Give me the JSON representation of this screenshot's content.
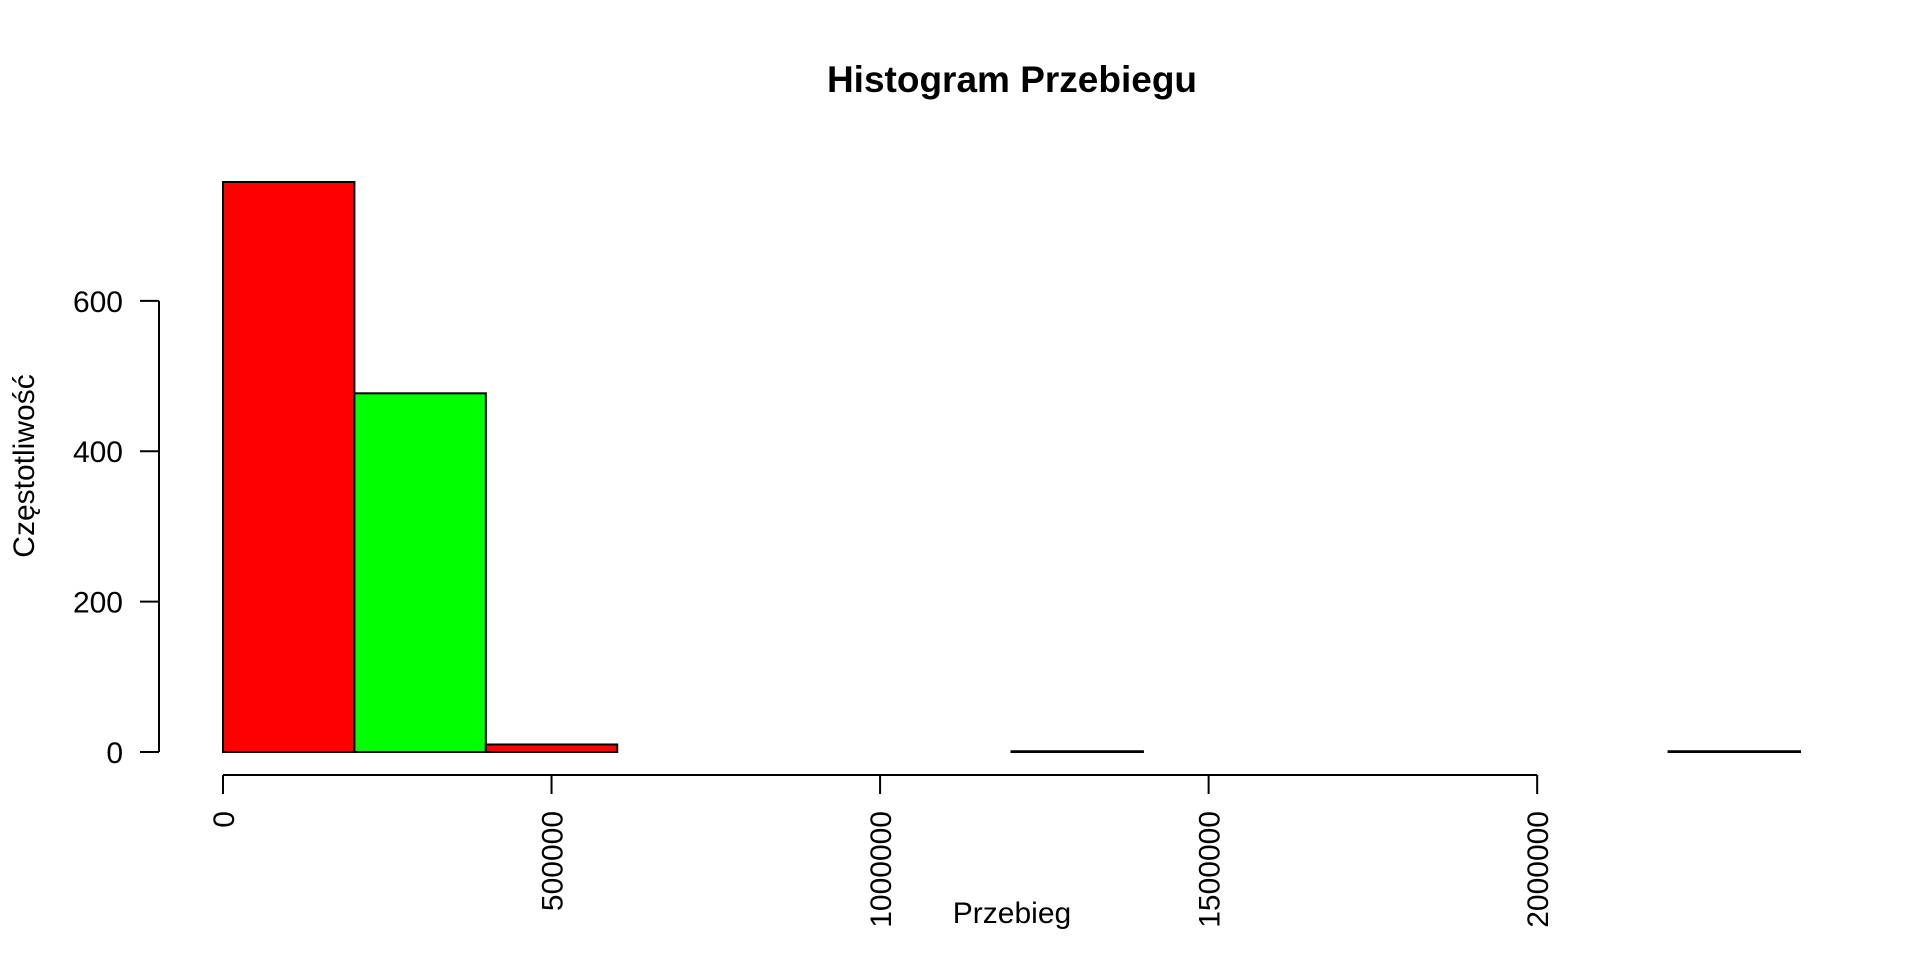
{
  "chart_data": {
    "type": "bar",
    "subtype": "histogram",
    "title": "Histogram Przebiegu",
    "xlabel": "Przebieg",
    "ylabel": "Częstotliwość",
    "bin_width": 200000,
    "x": [
      0,
      200000,
      400000,
      600000,
      800000,
      1000000,
      1200000,
      1400000,
      1600000,
      1800000,
      2000000,
      2200000
    ],
    "values": [
      758,
      477,
      10,
      0,
      0,
      0,
      1,
      0,
      0,
      0,
      0,
      1
    ],
    "colors": [
      "#ff0000",
      "#00ff00",
      "#ff0000",
      "#00ff00",
      "#ff0000",
      "#00ff00",
      "#ff0000",
      "#00ff00",
      "#ff0000",
      "#00ff00",
      "#ff0000",
      "#00ff00"
    ],
    "xlim": [
      0,
      2400000
    ],
    "ylim": [
      0,
      758
    ],
    "x_ticks": [
      0,
      500000,
      1000000,
      1500000,
      2000000
    ],
    "x_tick_labels": [
      "0",
      "500000",
      "1000000",
      "1500000",
      "2000000"
    ],
    "y_ticks": [
      0,
      200,
      400,
      600
    ],
    "y_tick_labels": [
      "0",
      "200",
      "400",
      "600"
    ],
    "x_tick_label_orientation": "vertical",
    "y_tick_label_orientation": "horizontal",
    "grid": false,
    "legend": "none"
  }
}
